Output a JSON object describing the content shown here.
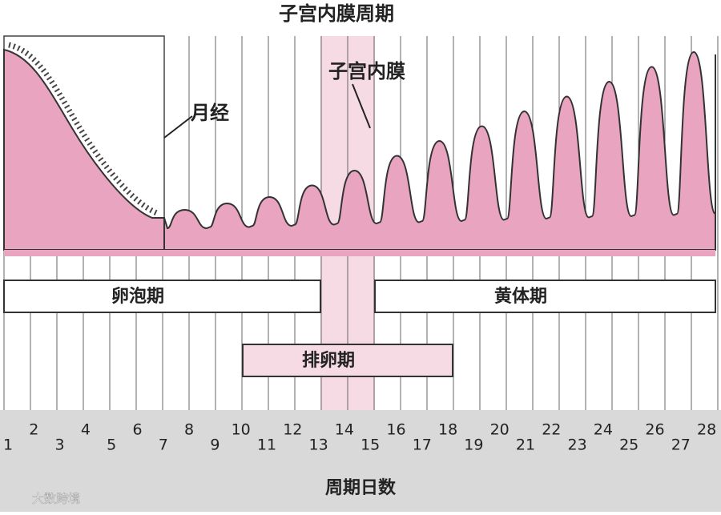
{
  "title": "子宫内膜周期",
  "labels": {
    "menstruation": "月经",
    "endometrium": "子宫内膜"
  },
  "phases": {
    "follicular": "卵泡期",
    "luteal": "黄体期",
    "ovulation": "排卵期"
  },
  "days": [
    1,
    2,
    3,
    4,
    5,
    6,
    7,
    8,
    9,
    10,
    11,
    12,
    13,
    14,
    15,
    16,
    17,
    18,
    19,
    20,
    21,
    22,
    23,
    24,
    25,
    26,
    27,
    28
  ],
  "axis_label": "周期日数",
  "watermark": "大数跨境"
}
